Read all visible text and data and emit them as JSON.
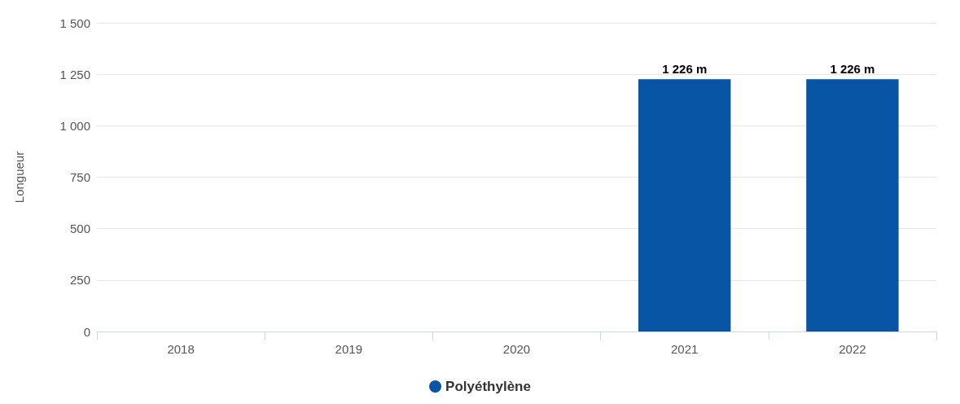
{
  "chart_data": {
    "type": "bar",
    "ylabel": "Longueur",
    "categories": [
      "2018",
      "2019",
      "2020",
      "2021",
      "2022"
    ],
    "series": [
      {
        "name": "Polyéthylène",
        "color": "#0955a5",
        "values": [
          null,
          null,
          null,
          1226,
          1226
        ],
        "value_labels": [
          null,
          null,
          null,
          "1 226 m",
          "1 226 m"
        ]
      }
    ],
    "ylim": [
      0,
      1500
    ],
    "yticks": [
      0,
      250,
      500,
      750,
      {
        "value": 1000,
        "label": "1 000"
      },
      {
        "value": 1250,
        "label": "1 250"
      },
      {
        "value": 1500,
        "label": "1 500"
      }
    ],
    "grid": "y",
    "legend": "bottom"
  }
}
